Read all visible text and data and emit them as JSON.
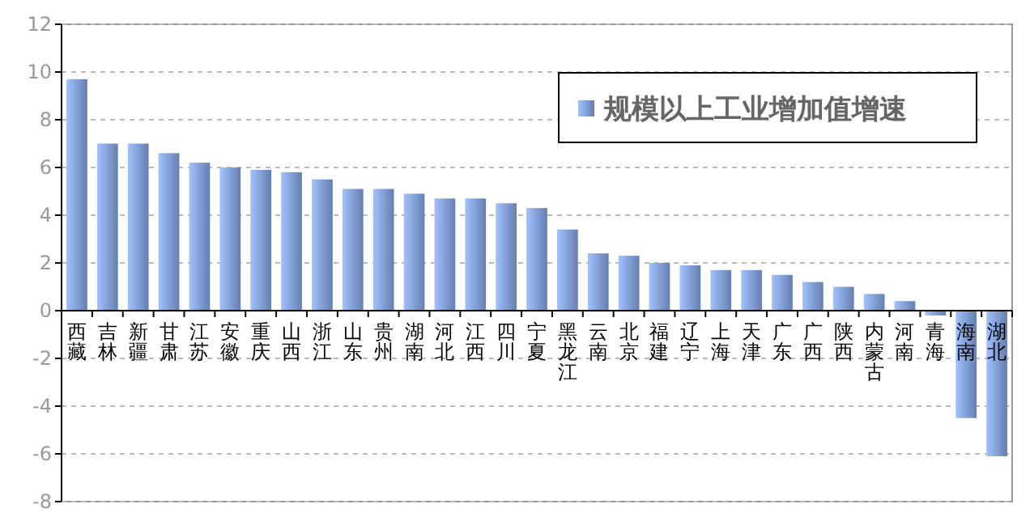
{
  "chart_data": {
    "type": "bar",
    "categories": [
      "西藏",
      "吉林",
      "新疆",
      "甘肃",
      "江苏",
      "安徽",
      "重庆",
      "山西",
      "浙江",
      "山东",
      "贵州",
      "湖南",
      "河北",
      "江西",
      "四川",
      "宁夏",
      "黑龙江",
      "云南",
      "北京",
      "福建",
      "辽宁",
      "上海",
      "天津",
      "广东",
      "广西",
      "陕西",
      "内蒙古",
      "河南",
      "青海",
      "海南",
      "湖北"
    ],
    "series": [
      {
        "name": "规模以上工业增加值增速",
        "color": "#8aa8e6",
        "values": [
          9.7,
          7.0,
          7.0,
          6.6,
          6.2,
          6.0,
          5.9,
          5.8,
          5.5,
          5.1,
          5.1,
          4.9,
          4.7,
          4.7,
          4.5,
          4.3,
          3.4,
          2.4,
          2.3,
          2.0,
          1.9,
          1.7,
          1.7,
          1.5,
          1.2,
          1.0,
          0.7,
          0.4,
          -0.2,
          -4.5,
          -6.1
        ]
      }
    ],
    "ylim": [
      -8,
      12
    ],
    "yticks": [
      -8,
      -6,
      -4,
      -2,
      0,
      2,
      4,
      6,
      8,
      10,
      12
    ],
    "grid": "y",
    "legend": "top right"
  }
}
